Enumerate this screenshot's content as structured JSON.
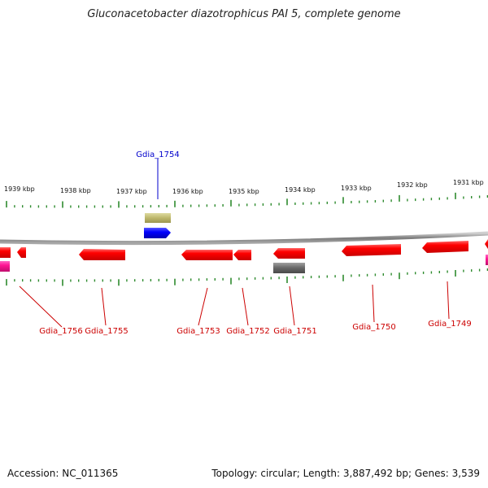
{
  "title": "Gluconacetobacter diazotrophicus PAI 5, complete genome",
  "footer": {
    "accession": "Accession: NC_011365",
    "summary": "Topology: circular; Length: 3,887,492 bp; Genes: 3,539"
  },
  "ruler_labels": [
    "1939 kbp",
    "1938 kbp",
    "1937 kbp",
    "1936 kbp",
    "1935 kbp",
    "1934 kbp",
    "1933 kbp",
    "1932 kbp",
    "1931 kbp"
  ],
  "genes": [
    {
      "name": "Gdia_1754",
      "color": "#0000cc"
    },
    {
      "name": "Gdia_1756",
      "color": "#cc0000"
    },
    {
      "name": "Gdia_1755",
      "color": "#cc0000"
    },
    {
      "name": "Gdia_1753",
      "color": "#cc0000"
    },
    {
      "name": "Gdia_1752",
      "color": "#cc0000"
    },
    {
      "name": "Gdia_1751",
      "color": "#cc0000"
    },
    {
      "name": "Gdia_1750",
      "color": "#cc0000"
    },
    {
      "name": "Gdia_1749",
      "color": "#cc0000"
    }
  ],
  "colors": {
    "backbone": "#8c8c8c",
    "ticks": "#2e8b2e",
    "forward_gene": "#0000ff",
    "reverse_gene": "#ff1a1a",
    "pink_gene": "#ff1493",
    "khaki_feature": "#bdb76b",
    "gray_feature": "#666666",
    "label_red": "#cc0000",
    "label_blue": "#0000cc"
  }
}
